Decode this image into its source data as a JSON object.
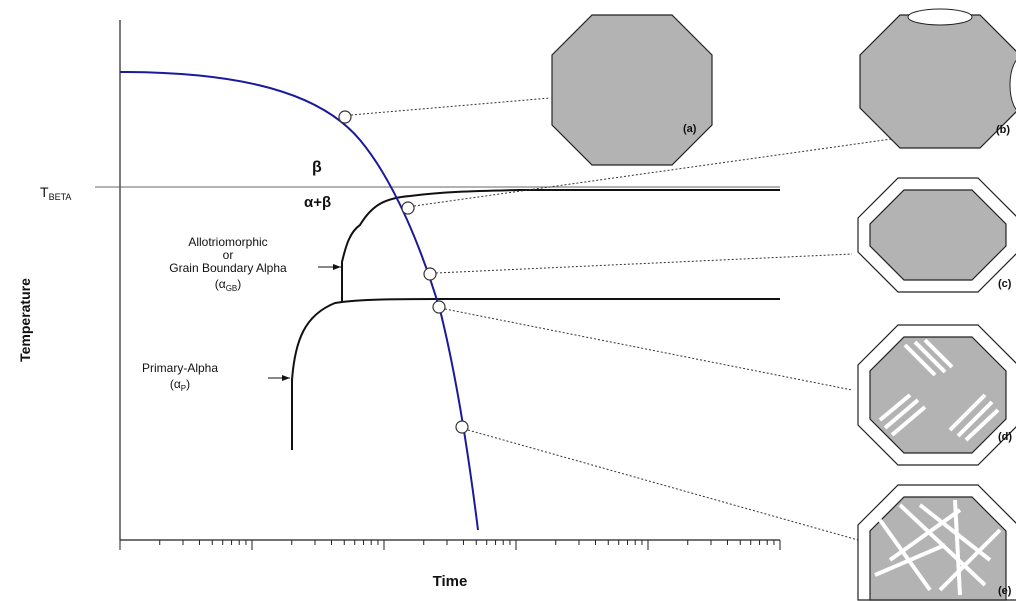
{
  "axes": {
    "y_label": "Temperature",
    "x_label": "Time"
  },
  "t_beta": {
    "main": "T",
    "sub": "BETA"
  },
  "regions": {
    "beta": "β",
    "alpha_beta": "α+β"
  },
  "annotations": {
    "gb_alpha": {
      "lines": [
        "Allotriomorphic",
        "or",
        "Grain Boundary Alpha"
      ],
      "symbol": "α",
      "sub": "GB"
    },
    "primary_alpha": {
      "line": "Primary-Alpha",
      "symbol": "α",
      "sub": "P"
    }
  },
  "panels": [
    {
      "label": "(a)"
    },
    {
      "label": "(b)"
    },
    {
      "label": "(c)"
    },
    {
      "label": "(d)"
    },
    {
      "label": "(e)"
    }
  ]
}
